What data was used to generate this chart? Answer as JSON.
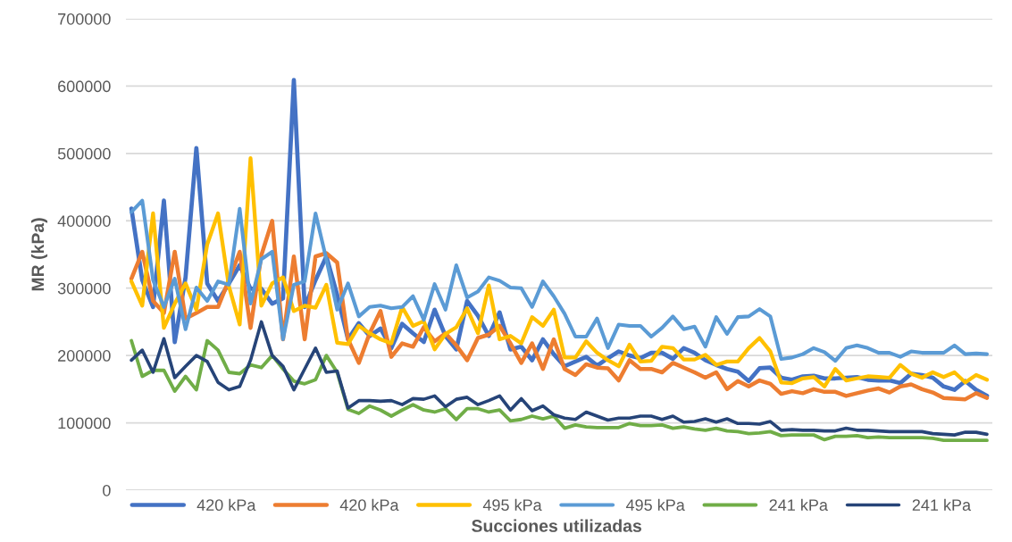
{
  "chart_data": {
    "type": "line",
    "xlabel": "Succiones utilizadas",
    "ylabel": "MR (kPa)",
    "categories": [
      null,
      null,
      null,
      null,
      null,
      null,
      null,
      null,
      null,
      null,
      null,
      null,
      null,
      null,
      null,
      null,
      null,
      null,
      null,
      null,
      null,
      null,
      null,
      null,
      null,
      null,
      null,
      null,
      null,
      null,
      null,
      null,
      null,
      null,
      null,
      null,
      null,
      null,
      null,
      null,
      null,
      null,
      null,
      null,
      null,
      null,
      null,
      null,
      null,
      null,
      null,
      null,
      null,
      null,
      null,
      null,
      null,
      null,
      null,
      null,
      null,
      null,
      null,
      null,
      null,
      null,
      null,
      null,
      null,
      null,
      null,
      null,
      null,
      null,
      null,
      null,
      null,
      null,
      null,
      null
    ],
    "ylim": [
      0,
      700000
    ],
    "yticks": [
      0,
      100000,
      200000,
      300000,
      400000,
      500000,
      600000,
      700000
    ],
    "grid": "y",
    "legend": "bottom",
    "series": [
      {
        "name": "420 kPa",
        "color": "#4472c4",
        "values": [
          418000,
          312000,
          272000,
          430000,
          220000,
          316000,
          508000,
          307000,
          281000,
          307000,
          334000,
          299000,
          299000,
          277000,
          285000,
          609000,
          272000,
          312000,
          347000,
          290000,
          224000,
          248000,
          229000,
          240000,
          211000,
          247000,
          233000,
          220000,
          268000,
          229000,
          209000,
          281000,
          259000,
          229000,
          264000,
          209000,
          213000,
          193000,
          224000,
          202000,
          184000,
          191000,
          198000,
          185000,
          196000,
          206000,
          200000,
          196000,
          204000,
          204000,
          195000,
          211000,
          204000,
          193000,
          186000,
          180000,
          176000,
          162000,
          181000,
          182000,
          167000,
          164000,
          169000,
          170000,
          166000,
          166000,
          167000,
          168000,
          164000,
          163000,
          163000,
          159000,
          173000,
          171000,
          167000,
          154000,
          149000,
          162000,
          149000,
          140000
        ]
      },
      {
        "name": "420 kPa",
        "color": "#ed7d31",
        "values": [
          314000,
          354000,
          281000,
          263000,
          354000,
          255000,
          263000,
          272000,
          272000,
          312000,
          354000,
          241000,
          349000,
          400000,
          224000,
          347000,
          224000,
          347000,
          352000,
          338000,
          224000,
          189000,
          233000,
          266000,
          198000,
          218000,
          213000,
          242000,
          221000,
          233000,
          215000,
          193000,
          226000,
          231000,
          244000,
          218000,
          189000,
          218000,
          180000,
          224000,
          180000,
          171000,
          187000,
          182000,
          181000,
          163000,
          193000,
          180000,
          180000,
          175000,
          189000,
          182000,
          175000,
          167000,
          175000,
          150000,
          162000,
          154000,
          163000,
          158000,
          143000,
          147000,
          144000,
          150000,
          146000,
          146000,
          140000,
          144000,
          148000,
          151000,
          145000,
          154000,
          157000,
          150000,
          145000,
          137000,
          136000,
          135000,
          144000,
          137000
        ]
      },
      {
        "name": "495 kPa",
        "color": "#ffc000",
        "values": [
          310000,
          274000,
          411000,
          241000,
          277000,
          307000,
          268000,
          365000,
          411000,
          303000,
          246000,
          493000,
          274000,
          307000,
          316000,
          266000,
          274000,
          271000,
          305000,
          219000,
          217000,
          244000,
          233000,
          224000,
          218000,
          272000,
          244000,
          251000,
          209000,
          232000,
          242000,
          270000,
          233000,
          304000,
          224000,
          229000,
          218000,
          257000,
          244000,
          268000,
          197000,
          197000,
          221000,
          204000,
          193000,
          184000,
          216000,
          191000,
          192000,
          213000,
          211000,
          194000,
          194000,
          201000,
          186000,
          191000,
          191000,
          211000,
          226000,
          206000,
          160000,
          159000,
          166000,
          168000,
          154000,
          180000,
          163000,
          166000,
          169000,
          168000,
          167000,
          186000,
          173000,
          167000,
          175000,
          168000,
          175000,
          160000,
          171000,
          164000
        ]
      },
      {
        "name": "495 kPa",
        "color": "#5b9bd5",
        "values": [
          413000,
          430000,
          312000,
          272000,
          314000,
          239000,
          301000,
          281000,
          310000,
          305000,
          418000,
          277000,
          343000,
          354000,
          224000,
          305000,
          310000,
          411000,
          343000,
          268000,
          307000,
          258000,
          272000,
          274000,
          270000,
          272000,
          288000,
          253000,
          306000,
          268000,
          334000,
          286000,
          295000,
          316000,
          311000,
          301000,
          300000,
          272000,
          310000,
          288000,
          262000,
          228000,
          228000,
          255000,
          211000,
          246000,
          244000,
          244000,
          228000,
          241000,
          258000,
          239000,
          243000,
          213000,
          257000,
          232000,
          257000,
          258000,
          269000,
          258000,
          195000,
          197000,
          202000,
          211000,
          205000,
          192000,
          211000,
          215000,
          211000,
          204000,
          204000,
          198000,
          206000,
          204000,
          204000,
          204000,
          215000,
          202000,
          203000,
          202000
        ]
      },
      {
        "name": "241 kPa",
        "color": "#70ad47",
        "values": [
          222000,
          169000,
          178000,
          178000,
          147000,
          169000,
          149000,
          222000,
          208000,
          175000,
          173000,
          186000,
          182000,
          200000,
          180000,
          162000,
          158000,
          164000,
          200000,
          175000,
          120000,
          114000,
          125000,
          119000,
          110000,
          119000,
          127000,
          119000,
          116000,
          121000,
          105000,
          121000,
          121000,
          116000,
          119000,
          103000,
          105000,
          110000,
          106000,
          110000,
          92000,
          97000,
          94000,
          93000,
          93000,
          93000,
          99000,
          96000,
          96000,
          97000,
          92000,
          94000,
          91000,
          89000,
          92000,
          88000,
          87000,
          84000,
          85000,
          87000,
          81000,
          82000,
          82000,
          82000,
          75000,
          80000,
          80000,
          81000,
          78000,
          79000,
          78000,
          78000,
          78000,
          78000,
          77000,
          74000,
          74000,
          74000,
          74000,
          74000
        ]
      },
      {
        "name": "241 kPa",
        "color": "#264478",
        "values": [
          193000,
          208000,
          175000,
          225000,
          167000,
          184000,
          200000,
          191000,
          160000,
          149000,
          154000,
          193000,
          250000,
          200000,
          184000,
          149000,
          180000,
          211000,
          175000,
          177000,
          122000,
          133000,
          133000,
          132000,
          133000,
          127000,
          136000,
          135000,
          140000,
          124000,
          135000,
          138000,
          127000,
          133000,
          140000,
          119000,
          136000,
          118000,
          125000,
          112000,
          107000,
          105000,
          116000,
          110000,
          104000,
          107000,
          107000,
          110000,
          110000,
          105000,
          110000,
          101000,
          102000,
          106000,
          101000,
          106000,
          99000,
          99000,
          98000,
          102000,
          89000,
          90000,
          89000,
          89000,
          88000,
          88000,
          92000,
          89000,
          89000,
          88000,
          87000,
          87000,
          87000,
          87000,
          84000,
          83000,
          82000,
          86000,
          86000,
          83000
        ]
      }
    ]
  }
}
